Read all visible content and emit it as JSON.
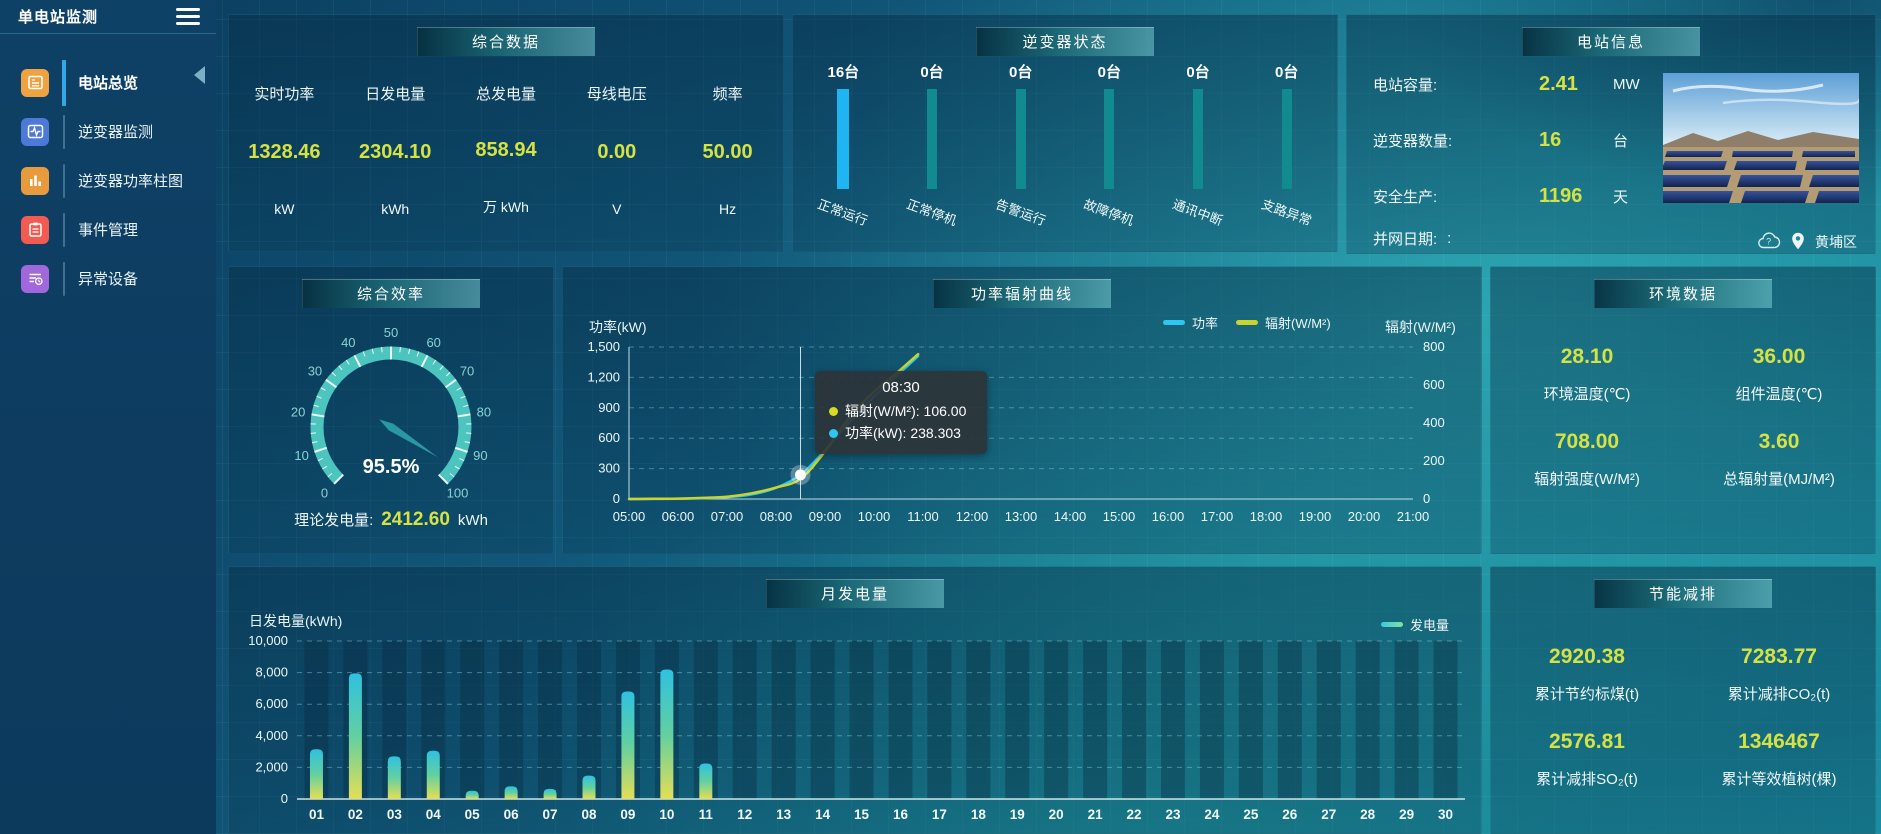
{
  "sidebar": {
    "title": "单电站监测",
    "items": [
      {
        "label": "电站总览",
        "active": true,
        "color": "#efa23f"
      },
      {
        "label": "逆变器监测",
        "active": false,
        "color": "#4d79d9"
      },
      {
        "label": "逆变器功率柱图",
        "active": false,
        "color": "#e89b3c"
      },
      {
        "label": "事件管理",
        "active": false,
        "color": "#f25a52"
      },
      {
        "label": "异常设备",
        "active": false,
        "color": "#a168dd"
      }
    ]
  },
  "panels": {
    "summary": {
      "title": "综合数据",
      "metrics": [
        {
          "label": "实时功率",
          "value": "1328.46",
          "unit": "kW"
        },
        {
          "label": "日发电量",
          "value": "2304.10",
          "unit": "kWh"
        },
        {
          "label": "总发电量",
          "value": "858.94",
          "unit": "万 kWh"
        },
        {
          "label": "母线电压",
          "value": "0.00",
          "unit": "V"
        },
        {
          "label": "频率",
          "value": "50.00",
          "unit": "Hz"
        }
      ]
    },
    "inverter_status": {
      "title": "逆变器状态",
      "bars": [
        {
          "count": "16台",
          "label": "正常运行"
        },
        {
          "count": "0台",
          "label": "正常停机"
        },
        {
          "count": "0台",
          "label": "告警运行"
        },
        {
          "count": "0台",
          "label": "故障停机"
        },
        {
          "count": "0台",
          "label": "通讯中断"
        },
        {
          "count": "0台",
          "label": "支路异常"
        }
      ]
    },
    "station_info": {
      "title": "电站信息",
      "rows": [
        {
          "label": "电站容量:",
          "value": "2.41",
          "unit": "MW"
        },
        {
          "label": "逆变器数量:",
          "value": "16",
          "unit": "台"
        },
        {
          "label": "安全生产:",
          "value": "1196",
          "unit": "天"
        },
        {
          "label": "并网日期:",
          "value": ":",
          "unit": ""
        }
      ],
      "location": "黄埔区"
    },
    "efficiency": {
      "title": "综合效率",
      "footer_label": "理论发电量:",
      "footer_value": "2412.60",
      "footer_unit": "kWh"
    },
    "power_curve": {
      "title": "功率辐射曲线"
    },
    "environment": {
      "title": "环境数据",
      "metrics": [
        {
          "value": "28.10",
          "label": "环境温度(℃)"
        },
        {
          "value": "36.00",
          "label": "组件温度(℃)"
        },
        {
          "value": "708.00",
          "label": "辐射强度(W/M²)"
        },
        {
          "value": "3.60",
          "label": "总辐射量(MJ/M²)"
        }
      ]
    },
    "monthly": {
      "title": "月发电量"
    },
    "saving": {
      "title": "节能减排",
      "metrics": [
        {
          "value": "2920.38",
          "label": "累计节约标煤(t)"
        },
        {
          "value": "7283.77",
          "label": "累计减排CO₂(t)"
        },
        {
          "value": "2576.81",
          "label": "累计减排SO₂(t)"
        },
        {
          "value": "1346467",
          "label": "累计等效植树(棵)"
        }
      ]
    }
  },
  "chart_data": [
    {
      "id": "inverter-status",
      "type": "bar",
      "title": "逆变器状态",
      "categories": [
        "正常运行",
        "正常停机",
        "告警运行",
        "故障停机",
        "通讯中断",
        "支路异常"
      ],
      "values": [
        16,
        0,
        0,
        0,
        0,
        0
      ],
      "unit": "台",
      "bar_colors": [
        "#1fb5f2",
        "#128b90",
        "#128b90",
        "#128b90",
        "#128b90",
        "#128b90"
      ]
    },
    {
      "id": "efficiency-gauge",
      "type": "gauge",
      "title": "综合效率",
      "value": 95.5,
      "min": 0,
      "max": 100,
      "display": "95.5%",
      "tick_labels": [
        "0",
        "10",
        "20",
        "30",
        "40",
        "50",
        "60",
        "70",
        "80",
        "90",
        "100"
      ],
      "arc_color": "#4cc5bf",
      "needle_color": "#2a98a2"
    },
    {
      "id": "power-radiation",
      "type": "line",
      "title": "功率辐射曲线",
      "x_range": [
        5,
        21
      ],
      "x_ticks": [
        "05:00",
        "06:00",
        "07:00",
        "08:00",
        "09:00",
        "10:00",
        "11:00",
        "12:00",
        "13:00",
        "14:00",
        "15:00",
        "16:00",
        "17:00",
        "18:00",
        "19:00",
        "20:00",
        "21:00"
      ],
      "left_axis": {
        "label": "功率(kW)",
        "min": 0,
        "max": 1500,
        "ticks": [
          "1,500",
          "1,200",
          "900",
          "600",
          "300",
          "0"
        ]
      },
      "right_axis": {
        "label": "辐射(W/M²)",
        "min": 0,
        "max": 800,
        "ticks": [
          "800",
          "600",
          "400",
          "200",
          "0"
        ]
      },
      "series": [
        {
          "name": "功率",
          "axis": "left",
          "color": "#2ec7f4",
          "x": [
            5,
            5.5,
            6,
            6.5,
            7,
            7.5,
            8,
            8.5,
            9,
            9.5,
            10,
            10.45,
            10.9
          ],
          "values": [
            0,
            1,
            3,
            8,
            18,
            45,
            110,
            238.303,
            480,
            760,
            1010,
            1210,
            1410
          ]
        },
        {
          "name": "辐射(W/M²)",
          "axis": "right",
          "color": "#ccd32a",
          "x": [
            5,
            5.5,
            6,
            6.5,
            7,
            7.5,
            8,
            8.5,
            9,
            9.5,
            10,
            10.45,
            10.9
          ],
          "values": [
            0,
            1,
            2,
            6,
            12,
            30,
            60,
            106,
            250,
            430,
            565,
            660,
            762
          ]
        }
      ],
      "marker": {
        "x": 8.5,
        "value": 238.303,
        "axis": "left"
      },
      "tooltip": {
        "time": "08:30",
        "lines": [
          {
            "dot": "#d9dc1e",
            "text": "辐射(W/M²): 106.00"
          },
          {
            "dot": "#2ec7f4",
            "text": "功率(kW): 238.303"
          }
        ]
      }
    },
    {
      "id": "monthly-generation",
      "type": "bar",
      "title": "月发电量",
      "ylabel": "日发电量(kWh)",
      "legend": "发电量",
      "ylim": [
        0,
        10000
      ],
      "yticks": [
        "10,000",
        "8,000",
        "6,000",
        "4,000",
        "2,000",
        "0"
      ],
      "categories": [
        "01",
        "02",
        "03",
        "04",
        "05",
        "06",
        "07",
        "08",
        "09",
        "10",
        "11",
        "12",
        "13",
        "14",
        "15",
        "16",
        "17",
        "18",
        "19",
        "20",
        "21",
        "22",
        "23",
        "24",
        "25",
        "26",
        "27",
        "28",
        "29",
        "30"
      ],
      "values": [
        3150,
        7950,
        2700,
        3050,
        520,
        800,
        640,
        1480,
        6800,
        8200,
        2250,
        0,
        0,
        0,
        0,
        0,
        0,
        0,
        0,
        0,
        0,
        0,
        0,
        0,
        0,
        0,
        0,
        0,
        0,
        0
      ],
      "bar_gradient": [
        "#e5de55",
        "#62d0a0",
        "#2fc1e0"
      ]
    }
  ],
  "colors": {
    "value_yellow": "#d5e243",
    "highlight_blue": "#1fb5f2",
    "teal_bar": "#128b90"
  }
}
